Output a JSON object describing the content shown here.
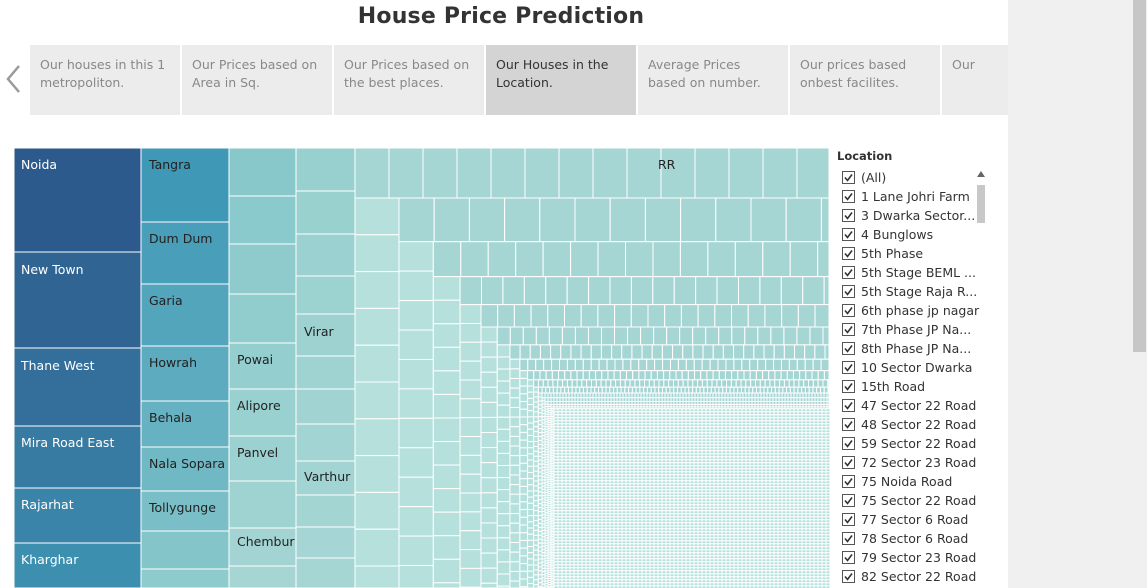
{
  "title": "House Price Prediction",
  "tabs": [
    {
      "label": "Our houses in this 1 metropoliton.",
      "active": false
    },
    {
      "label": "Our Prices based on Area in Sq.",
      "active": false
    },
    {
      "label": "Our Prices based on the best places.",
      "active": false
    },
    {
      "label": "Our Houses in the Location.",
      "active": true
    },
    {
      "label": "Average Prices based on number.",
      "active": false
    },
    {
      "label": "Our prices based onbest facilites.",
      "active": false
    },
    {
      "label": "Our",
      "active": false
    }
  ],
  "treemap": {
    "labels": {
      "noida": "Noida",
      "new_town": "New Town",
      "thane_west": "Thane West",
      "mira_road_east": "Mira Road East",
      "rajarhat": "Rajarhat",
      "kharghar": "Kharghar",
      "tangra": "Tangra",
      "dum_dum": "Dum Dum",
      "garia": "Garia",
      "howrah": "Howrah",
      "behala": "Behala",
      "nala_sopara": "Nala Sopara",
      "tollygunge": "Tollygunge",
      "powai": "Powai",
      "alipore": "Alipore",
      "panvel": "Panvel",
      "chembur": "Chembur",
      "virar": "Virar",
      "varthur": "Varthur",
      "rr": "RR"
    },
    "colors": {
      "dark": "#2d5a8c",
      "mid": "#3d8fb0",
      "light": "#a6d6d4",
      "lightest": "#b6e0dc"
    }
  },
  "legend": {
    "title": "Location",
    "items": [
      "(All)",
      "1 Lane Johri Farm",
      "3 Dwarka Sector...",
      "4 Bunglows",
      "5th Phase",
      "5th Stage BEML ...",
      "5th Stage Raja R...",
      "6th phase jp nagar",
      "7th Phase JP Na...",
      "8th Phase JP Na...",
      "10 Sector Dwarka",
      "15th Road",
      "47 Sector 22 Road",
      "48 Sector 22 Road",
      "59 Sector 22 Road",
      "72 Sector 23 Road",
      "75 Noida Road",
      "75 Sector 22 Road",
      "77 Sector 6 Road",
      "78 Sector 6 Road",
      "79 Sector 23 Road",
      "82 Sector 22 Road"
    ]
  }
}
